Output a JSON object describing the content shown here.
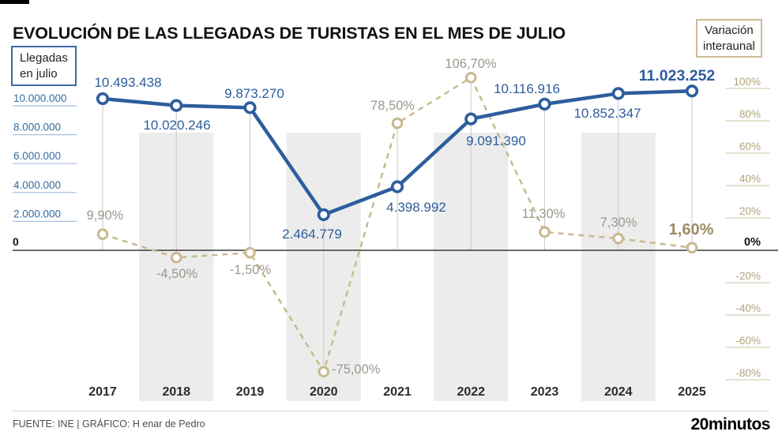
{
  "title": "EVOLUCIÓN DE LAS LLEGADAS DE TURISTAS EN EL MES DE JULIO",
  "legend": {
    "arrivals": "Llegadas\nen julio",
    "variation": "Variación\ninteraunal"
  },
  "footer": {
    "source": "FUENTE: INE  |  GRÁFICO: H enar de Pedro",
    "logo": "20minutos"
  },
  "colors": {
    "arrivals_line": "#2e5d9d",
    "arrivals_label": "#2e5d9d",
    "left_axis_label": "#336ba3",
    "left_axis_rule": "#a9bfdb",
    "variation_line": "#c8b98f",
    "variation_label": "#9c978c",
    "variation_label_last": "#9c8c62",
    "right_axis_label": "#b0a37c",
    "right_axis_rule": "#d9d0b8",
    "zero_axis": "#3a3a3a",
    "year_label": "#2b2b2b",
    "band": "#ececec",
    "vertical_line": "#c9c9c9"
  },
  "chart_data": {
    "type": "line",
    "title": "Evolución de las llegadas de turistas en el mes de julio",
    "categories": [
      2017,
      2018,
      2019,
      2020,
      2021,
      2022,
      2023,
      2024,
      2025
    ],
    "series": [
      {
        "name": "Llegadas en julio",
        "axis": "left",
        "values": [
          10493438,
          10020246,
          9873270,
          2464779,
          4398992,
          9091390,
          10116916,
          10852347,
          11023252
        ],
        "labels": [
          "10.493.438",
          "10.020.246",
          "9.873.270",
          "2.464.779",
          "4.398.992",
          "9.091.390",
          "10.116.916",
          "10.852.347",
          "11.023.252"
        ]
      },
      {
        "name": "Variación interaunal",
        "axis": "right",
        "values": [
          9.9,
          -4.5,
          -1.5,
          -75.0,
          78.5,
          106.7,
          11.3,
          7.3,
          1.6
        ],
        "labels": [
          "9,90%",
          "-4,50%",
          "-1,50%",
          "-75,00%",
          "78,50%",
          "106,70%",
          "11,30%",
          "7,30%",
          "1,60%"
        ]
      }
    ],
    "left_axis": {
      "title": "Llegadas en julio",
      "tick_labels": [
        "10.000.000",
        "8.000.000",
        "6.000.000",
        "4.000.000",
        "2.000.000",
        "0"
      ],
      "tick_values": [
        10000000,
        8000000,
        6000000,
        4000000,
        2000000,
        0
      ],
      "range": [
        0,
        10000000
      ]
    },
    "right_axis": {
      "title": "Variación interaunal",
      "tick_labels": [
        "100%",
        "80%",
        "60%",
        "40%",
        "20%",
        "0%",
        "-20%",
        "-40%",
        "-60%",
        "-80%"
      ],
      "tick_values": [
        100,
        80,
        60,
        40,
        20,
        0,
        -20,
        -40,
        -60,
        -80
      ],
      "range": [
        -80,
        100
      ]
    },
    "banded_years": [
      2018,
      2020,
      2022,
      2024
    ],
    "grid": "vertical-per-year",
    "legend_position": "top-corners"
  }
}
